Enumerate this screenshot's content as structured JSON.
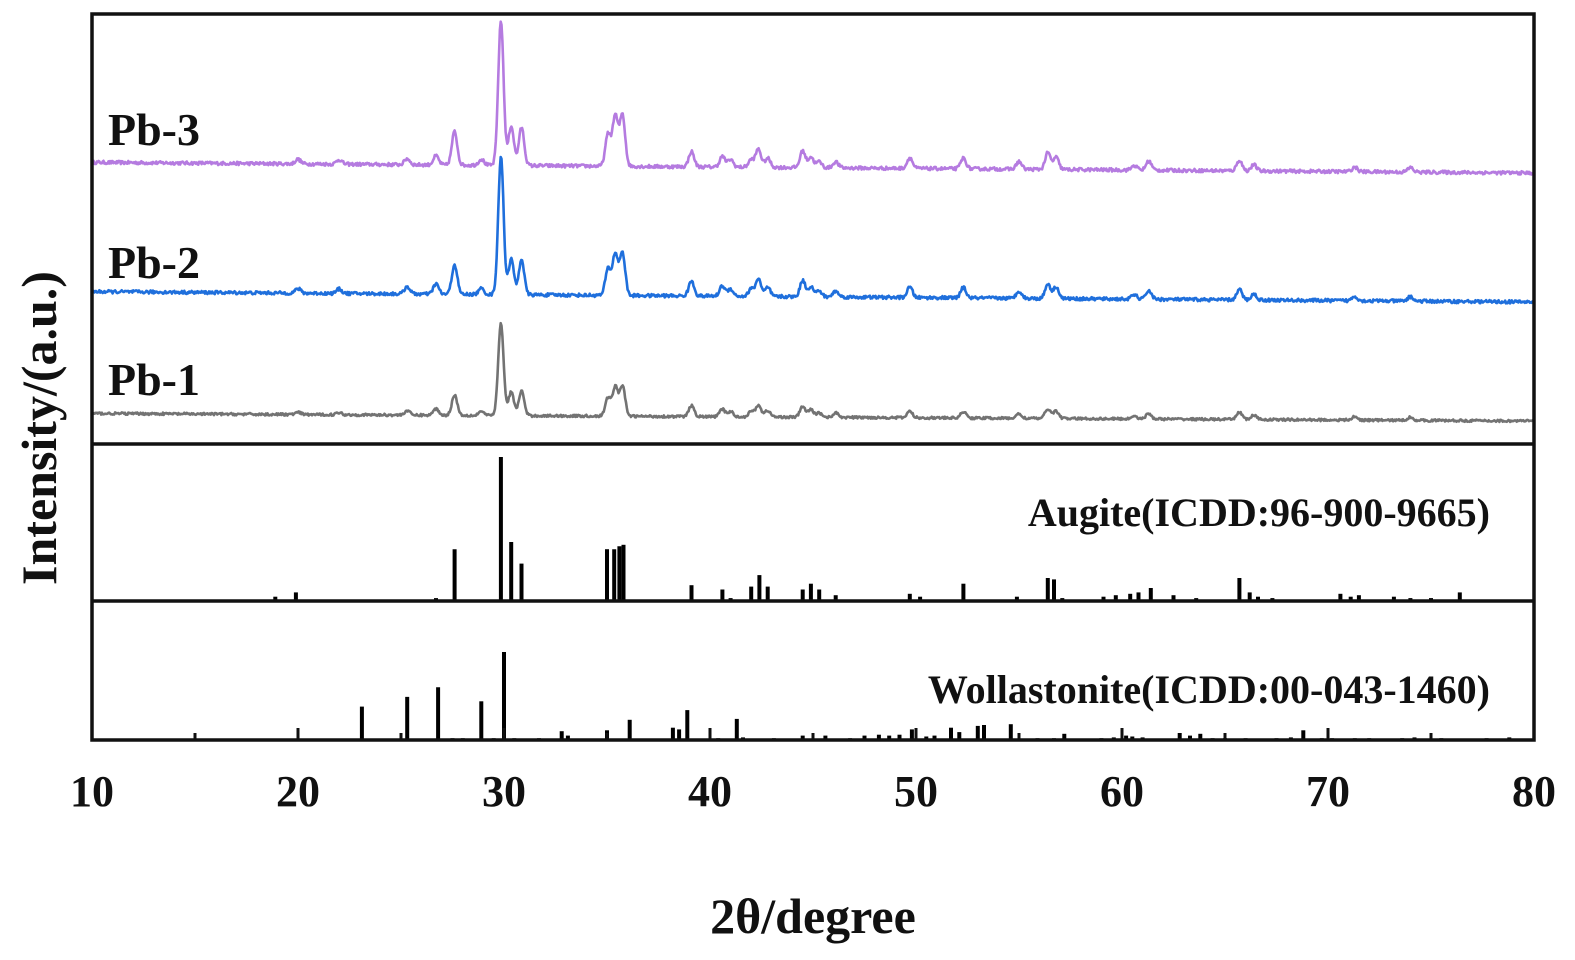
{
  "chart_data": {
    "type": "line",
    "xlabel": "2θ/degree",
    "ylabel": "Intensity/(a.u.)",
    "xlim": [
      10,
      80
    ],
    "x_ticks": [
      10,
      20,
      30,
      40,
      50,
      60,
      70,
      80
    ],
    "grid": false,
    "legend": "labels placed at left of each trace",
    "series": [
      {
        "name": "Pb-3",
        "color": "#b57be0",
        "baseline": [
          [
            10,
            0.07
          ],
          [
            80,
            0.0
          ]
        ],
        "peaks": [
          [
            20.0,
            0.03
          ],
          [
            22.0,
            0.03
          ],
          [
            25.3,
            0.04
          ],
          [
            26.7,
            0.06
          ],
          [
            27.6,
            0.22
          ],
          [
            28.9,
            0.04
          ],
          [
            29.85,
            0.95
          ],
          [
            30.35,
            0.26
          ],
          [
            30.85,
            0.25
          ],
          [
            35.05,
            0.21
          ],
          [
            35.4,
            0.33
          ],
          [
            35.75,
            0.34
          ],
          [
            39.1,
            0.1
          ],
          [
            40.6,
            0.07
          ],
          [
            41.0,
            0.05
          ],
          [
            42.0,
            0.05
          ],
          [
            42.35,
            0.12
          ],
          [
            42.8,
            0.06
          ],
          [
            44.5,
            0.11
          ],
          [
            44.9,
            0.07
          ],
          [
            45.3,
            0.04
          ],
          [
            46.1,
            0.04
          ],
          [
            49.7,
            0.07
          ],
          [
            52.3,
            0.07
          ],
          [
            55.0,
            0.05
          ],
          [
            56.4,
            0.11
          ],
          [
            56.8,
            0.08
          ],
          [
            60.6,
            0.03
          ],
          [
            61.3,
            0.06
          ],
          [
            65.7,
            0.07
          ],
          [
            66.4,
            0.04
          ],
          [
            71.3,
            0.03
          ],
          [
            74.0,
            0.03
          ]
        ]
      },
      {
        "name": "Pb-2",
        "color": "#1f6fdc",
        "baseline": [
          [
            10,
            0.07
          ],
          [
            80,
            0.0
          ]
        ],
        "peaks": [
          [
            20.0,
            0.03
          ],
          [
            22.0,
            0.03
          ],
          [
            25.3,
            0.05
          ],
          [
            26.7,
            0.07
          ],
          [
            27.6,
            0.2
          ],
          [
            28.9,
            0.04
          ],
          [
            29.85,
            0.93
          ],
          [
            30.35,
            0.24
          ],
          [
            30.85,
            0.24
          ],
          [
            35.05,
            0.18
          ],
          [
            35.4,
            0.28
          ],
          [
            35.75,
            0.29
          ],
          [
            39.1,
            0.1
          ],
          [
            40.6,
            0.07
          ],
          [
            41.0,
            0.05
          ],
          [
            42.0,
            0.05
          ],
          [
            42.35,
            0.12
          ],
          [
            42.8,
            0.06
          ],
          [
            44.5,
            0.11
          ],
          [
            44.9,
            0.07
          ],
          [
            45.3,
            0.04
          ],
          [
            46.1,
            0.04
          ],
          [
            49.7,
            0.07
          ],
          [
            52.3,
            0.07
          ],
          [
            55.0,
            0.05
          ],
          [
            56.4,
            0.1
          ],
          [
            56.8,
            0.08
          ],
          [
            60.6,
            0.03
          ],
          [
            61.3,
            0.06
          ],
          [
            65.7,
            0.07
          ],
          [
            66.4,
            0.04
          ],
          [
            71.3,
            0.03
          ],
          [
            74.0,
            0.03
          ]
        ]
      },
      {
        "name": "Pb-1",
        "color": "#737373",
        "baseline": [
          [
            10,
            0.07
          ],
          [
            80,
            0.0
          ]
        ],
        "peaks": [
          [
            20.0,
            0.02
          ],
          [
            22.0,
            0.02
          ],
          [
            25.3,
            0.04
          ],
          [
            26.7,
            0.06
          ],
          [
            27.6,
            0.19
          ],
          [
            28.9,
            0.04
          ],
          [
            29.85,
            0.85
          ],
          [
            30.35,
            0.22
          ],
          [
            30.85,
            0.23
          ],
          [
            35.05,
            0.17
          ],
          [
            35.4,
            0.27
          ],
          [
            35.75,
            0.28
          ],
          [
            39.1,
            0.1
          ],
          [
            40.6,
            0.07
          ],
          [
            41.0,
            0.05
          ],
          [
            42.0,
            0.05
          ],
          [
            42.35,
            0.11
          ],
          [
            42.8,
            0.06
          ],
          [
            44.5,
            0.1
          ],
          [
            44.9,
            0.07
          ],
          [
            45.3,
            0.04
          ],
          [
            46.1,
            0.04
          ],
          [
            49.7,
            0.06
          ],
          [
            52.3,
            0.06
          ],
          [
            55.0,
            0.04
          ],
          [
            56.4,
            0.09
          ],
          [
            56.8,
            0.07
          ],
          [
            60.6,
            0.03
          ],
          [
            61.3,
            0.05
          ],
          [
            65.7,
            0.07
          ],
          [
            66.4,
            0.04
          ],
          [
            71.3,
            0.03
          ],
          [
            74.0,
            0.03
          ]
        ]
      }
    ],
    "references": [
      {
        "name": "Augite(ICDD:96-900-9665)",
        "color": "#000000",
        "lines": [
          [
            13.8,
            0.01
          ],
          [
            18.9,
            0.03
          ],
          [
            19.9,
            0.06
          ],
          [
            26.7,
            0.02
          ],
          [
            27.6,
            0.36
          ],
          [
            29.85,
            1.0
          ],
          [
            30.35,
            0.41
          ],
          [
            30.85,
            0.26
          ],
          [
            35.0,
            0.36
          ],
          [
            35.35,
            0.36
          ],
          [
            35.6,
            0.38
          ],
          [
            35.8,
            0.39
          ],
          [
            39.1,
            0.11
          ],
          [
            40.6,
            0.08
          ],
          [
            41.0,
            0.02
          ],
          [
            42.0,
            0.1
          ],
          [
            42.4,
            0.18
          ],
          [
            42.8,
            0.1
          ],
          [
            44.5,
            0.08
          ],
          [
            44.9,
            0.12
          ],
          [
            45.3,
            0.08
          ],
          [
            46.1,
            0.04
          ],
          [
            49.7,
            0.05
          ],
          [
            50.2,
            0.03
          ],
          [
            52.3,
            0.12
          ],
          [
            54.9,
            0.03
          ],
          [
            56.4,
            0.16
          ],
          [
            56.7,
            0.15
          ],
          [
            57.1,
            0.02
          ],
          [
            59.1,
            0.03
          ],
          [
            59.7,
            0.04
          ],
          [
            60.4,
            0.05
          ],
          [
            60.8,
            0.06
          ],
          [
            61.4,
            0.09
          ],
          [
            62.5,
            0.04
          ],
          [
            63.6,
            0.02
          ],
          [
            65.7,
            0.16
          ],
          [
            66.2,
            0.06
          ],
          [
            66.6,
            0.03
          ],
          [
            67.3,
            0.02
          ],
          [
            70.6,
            0.05
          ],
          [
            71.1,
            0.03
          ],
          [
            71.5,
            0.04
          ],
          [
            73.2,
            0.03
          ],
          [
            74.0,
            0.02
          ],
          [
            75.0,
            0.02
          ],
          [
            76.4,
            0.06
          ]
        ]
      },
      {
        "name": "Wollastonite(ICDD:00-043-1460)",
        "color": "#000000",
        "lines": [
          [
            17.8,
            0.01
          ],
          [
            23.1,
            0.38
          ],
          [
            25.3,
            0.49
          ],
          [
            26.8,
            0.6
          ],
          [
            27.5,
            0.02
          ],
          [
            28.0,
            0.02
          ],
          [
            28.9,
            0.44
          ],
          [
            29.5,
            0.02
          ],
          [
            30.0,
            1.0
          ],
          [
            30.5,
            0.02
          ],
          [
            31.7,
            0.02
          ],
          [
            32.8,
            0.1
          ],
          [
            33.1,
            0.05
          ],
          [
            35.0,
            0.11
          ],
          [
            36.1,
            0.23
          ],
          [
            38.2,
            0.14
          ],
          [
            38.5,
            0.12
          ],
          [
            38.9,
            0.34
          ],
          [
            40.4,
            0.02
          ],
          [
            41.3,
            0.24
          ],
          [
            41.6,
            0.03
          ],
          [
            43.1,
            0.02
          ],
          [
            44.5,
            0.05
          ],
          [
            45.6,
            0.05
          ],
          [
            46.8,
            0.02
          ],
          [
            47.5,
            0.05
          ],
          [
            48.2,
            0.06
          ],
          [
            48.7,
            0.05
          ],
          [
            49.2,
            0.06
          ],
          [
            49.8,
            0.12
          ],
          [
            50.5,
            0.04
          ],
          [
            50.9,
            0.05
          ],
          [
            51.7,
            0.14
          ],
          [
            52.1,
            0.09
          ],
          [
            53.0,
            0.16
          ],
          [
            53.3,
            0.17
          ],
          [
            54.6,
            0.18
          ],
          [
            55.9,
            0.02
          ],
          [
            56.7,
            0.02
          ],
          [
            57.2,
            0.07
          ],
          [
            59.0,
            0.02
          ],
          [
            59.6,
            0.03
          ],
          [
            60.2,
            0.05
          ],
          [
            60.5,
            0.04
          ],
          [
            61.0,
            0.03
          ],
          [
            62.8,
            0.08
          ],
          [
            63.3,
            0.05
          ],
          [
            63.8,
            0.07
          ],
          [
            64.4,
            0.02
          ],
          [
            65.0,
            0.02
          ],
          [
            66.0,
            0.02
          ],
          [
            67.5,
            0.02
          ],
          [
            68.2,
            0.03
          ],
          [
            68.8,
            0.11
          ],
          [
            69.7,
            0.02
          ],
          [
            70.2,
            0.02
          ],
          [
            71.3,
            0.02
          ],
          [
            72.0,
            0.02
          ],
          [
            73.6,
            0.02
          ],
          [
            74.2,
            0.03
          ],
          [
            75.5,
            0.02
          ],
          [
            77.7,
            0.02
          ],
          [
            78.8,
            0.03
          ]
        ]
      }
    ]
  }
}
